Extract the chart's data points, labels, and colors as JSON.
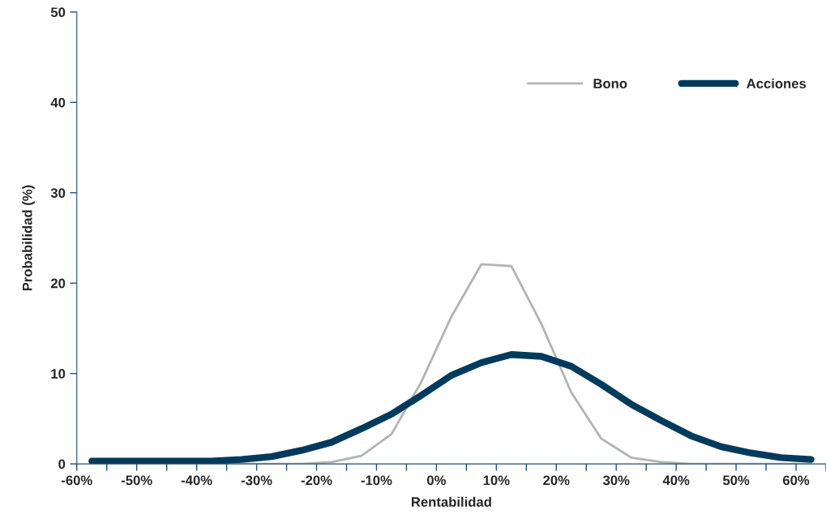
{
  "chart_data": {
    "type": "line",
    "xlabel": "Rentabilidad",
    "ylabel": "Probabilidad (%)",
    "x": [
      -57.5,
      -52.5,
      -47.5,
      -42.5,
      -37.5,
      -32.5,
      -27.5,
      -22.5,
      -17.5,
      -12.5,
      -7.5,
      -2.5,
      2.5,
      7.5,
      12.5,
      17.5,
      22.5,
      27.5,
      32.5,
      37.5,
      42.5,
      47.5,
      52.5,
      57.5,
      62.5
    ],
    "series": [
      {
        "name": "Bono",
        "color": "#b3b3b3",
        "values": [
          null,
          null,
          null,
          null,
          0,
          0,
          0,
          0,
          0.2,
          0.9,
          3.3,
          9.1,
          16.3,
          22.1,
          21.9,
          15.5,
          7.9,
          2.8,
          0.7,
          0.2,
          0,
          0,
          0,
          0,
          0
        ]
      },
      {
        "name": "Acciones",
        "color": "#003a5d",
        "values": [
          0.3,
          0.3,
          0.3,
          0.3,
          0.3,
          0.5,
          0.8,
          1.5,
          2.4,
          3.9,
          5.5,
          7.6,
          9.8,
          11.2,
          12.1,
          11.9,
          10.8,
          8.8,
          6.6,
          4.8,
          3.1,
          1.9,
          1.2,
          0.7,
          0.5
        ]
      }
    ],
    "xlim": [
      -60,
      65
    ],
    "xticks": [
      {
        "value": -60,
        "label": "-60%"
      },
      {
        "value": -55,
        "label": null
      },
      {
        "value": -50,
        "label": "-50%"
      },
      {
        "value": -45,
        "label": null
      },
      {
        "value": -40,
        "label": "-40%"
      },
      {
        "value": -35,
        "label": null
      },
      {
        "value": -30,
        "label": "-30%"
      },
      {
        "value": -25,
        "label": null
      },
      {
        "value": -20,
        "label": "-20%"
      },
      {
        "value": -15,
        "label": null
      },
      {
        "value": -10,
        "label": "-10%"
      },
      {
        "value": -5,
        "label": null
      },
      {
        "value": 0,
        "label": "0%"
      },
      {
        "value": 5,
        "label": null
      },
      {
        "value": 10,
        "label": "10%"
      },
      {
        "value": 15,
        "label": null
      },
      {
        "value": 20,
        "label": "20%"
      },
      {
        "value": 25,
        "label": null
      },
      {
        "value": 30,
        "label": "30%"
      },
      {
        "value": 35,
        "label": null
      },
      {
        "value": 40,
        "label": "40%"
      },
      {
        "value": 45,
        "label": null
      },
      {
        "value": 50,
        "label": "50%"
      },
      {
        "value": 55,
        "label": null
      },
      {
        "value": 60,
        "label": "60%"
      },
      {
        "value": 65,
        "label": null
      }
    ],
    "ylim": [
      0,
      50
    ],
    "yticks": [
      0,
      10,
      20,
      30,
      40,
      50
    ],
    "grid": false,
    "legend": "top right",
    "marker": "none",
    "line_style": "solid"
  }
}
